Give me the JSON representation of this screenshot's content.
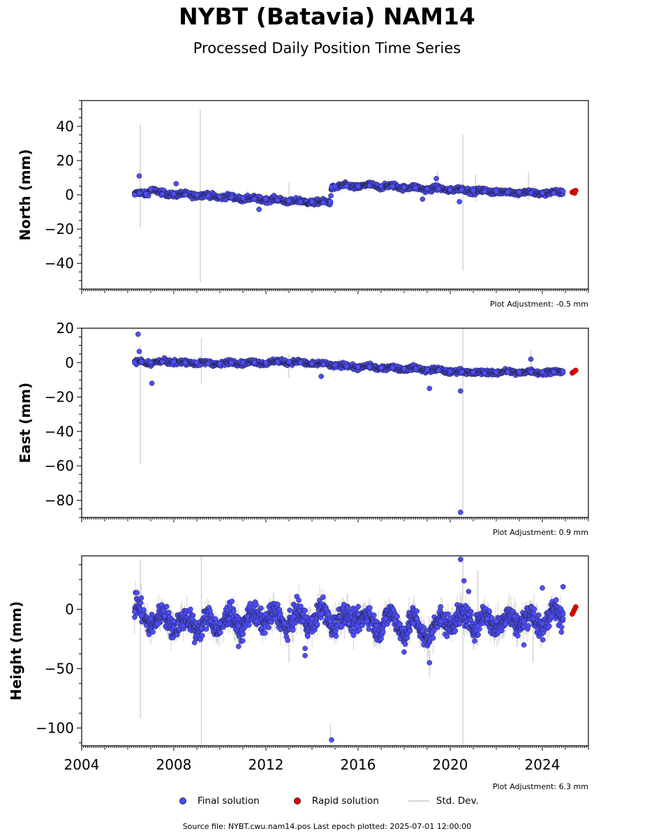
{
  "header": {
    "title": "NYBT (Batavia) NAM14",
    "subtitle": "Processed Daily Position Time Series"
  },
  "legend": {
    "final_label": "Final solution",
    "rapid_label": "Rapid solution",
    "std_label": "Std. Dev."
  },
  "footer": {
    "source": "Source file: NYBT.cwu.nam14.pos  Last epoch plotted: 2025-07-01 12:00:00"
  },
  "colors": {
    "final": "#4d4dff",
    "rapid": "#ee0000",
    "std": "#c8c8c8",
    "marker_edge": "#1a1a1a"
  },
  "chart_data": [
    {
      "type": "scatter",
      "component": "north",
      "ylabel": "North (mm)",
      "adjustment": "Plot Adjustment: -0.5 mm",
      "xlim": [
        2004.0,
        2026.0
      ],
      "ylim": [
        -55,
        55
      ],
      "yticks": [
        40,
        20,
        0,
        -20,
        -40
      ],
      "yticklabels": [
        "40",
        "20",
        "0",
        "−20",
        "−40"
      ],
      "series": [
        {
          "name": "Final solution",
          "x": [
            2006.3,
            2006.5,
            2006.8,
            2007.0,
            2007.5,
            2008.0,
            2008.5,
            2009.0,
            2009.5,
            2010.0,
            2010.5,
            2011.0,
            2011.5,
            2012.0,
            2012.5,
            2013.0,
            2013.5,
            2014.0,
            2014.5,
            2014.8,
            2014.85,
            2015.0,
            2015.5,
            2016.0,
            2016.5,
            2017.0,
            2017.5,
            2018.0,
            2018.5,
            2019.0,
            2019.5,
            2020.0,
            2020.5,
            2021.0,
            2021.5,
            2022.0,
            2022.5,
            2023.0,
            2023.5,
            2024.0,
            2024.5,
            2024.9
          ],
          "y": [
            0.0,
            1.0,
            0.5,
            3.5,
            0.5,
            0.5,
            0.0,
            0.0,
            -0.5,
            -1.0,
            -1.5,
            -2.0,
            -2.5,
            -2.5,
            -3.0,
            -3.5,
            -4.0,
            -4.0,
            -4.5,
            -4.0,
            4.5,
            5.0,
            5.0,
            5.0,
            5.5,
            5.0,
            5.0,
            4.5,
            4.0,
            3.5,
            3.5,
            3.0,
            3.0,
            2.5,
            2.0,
            2.0,
            1.5,
            1.5,
            1.0,
            1.0,
            1.0,
            2.0
          ]
        },
        {
          "name": "Rapid solution",
          "x": [
            2025.3,
            2025.35,
            2025.4,
            2025.45
          ],
          "y": [
            1.5,
            2.0,
            1.0,
            2.5
          ]
        }
      ],
      "outliers": [
        {
          "x": 2006.5,
          "y": 11.0
        },
        {
          "x": 2008.1,
          "y": 6.5
        },
        {
          "x": 2011.7,
          "y": -8.5
        },
        {
          "x": 2019.4,
          "y": 9.5
        },
        {
          "x": 2020.4,
          "y": -4.0
        },
        {
          "x": 2018.8,
          "y": -2.5
        }
      ],
      "errorbars": [
        {
          "x": 2006.55,
          "y1": -19,
          "y2": 41
        },
        {
          "x": 2009.15,
          "y1": -51,
          "y2": 50
        },
        {
          "x": 2020.55,
          "y1": -44,
          "y2": 35
        },
        {
          "x": 2013.0,
          "y1": -6,
          "y2": 7
        },
        {
          "x": 2019.45,
          "y1": 0,
          "y2": 14
        },
        {
          "x": 2021.1,
          "y1": -4,
          "y2": 12
        },
        {
          "x": 2023.4,
          "y1": -3,
          "y2": 13
        }
      ]
    },
    {
      "type": "scatter",
      "component": "east",
      "ylabel": "East (mm)",
      "adjustment": "Plot Adjustment: 0.9 mm",
      "xlim": [
        2004.0,
        2026.0
      ],
      "ylim": [
        -90,
        20
      ],
      "yticks": [
        20,
        0,
        -20,
        -40,
        -60,
        -80
      ],
      "yticklabels": [
        "20",
        "0",
        "−20",
        "−40",
        "−60",
        "−80"
      ],
      "series": [
        {
          "name": "Final solution",
          "x": [
            2006.3,
            2006.6,
            2007.0,
            2007.5,
            2008.0,
            2008.5,
            2009.0,
            2009.5,
            2010.0,
            2010.5,
            2011.0,
            2011.5,
            2012.0,
            2012.5,
            2013.0,
            2013.5,
            2014.0,
            2014.5,
            2015.0,
            2015.5,
            2016.0,
            2016.5,
            2017.0,
            2017.5,
            2018.0,
            2018.5,
            2019.0,
            2019.5,
            2020.0,
            2020.5,
            2021.0,
            2021.5,
            2022.0,
            2022.5,
            2023.0,
            2023.5,
            2024.0,
            2024.5,
            2024.9
          ],
          "y": [
            0.0,
            0.5,
            0.0,
            0.5,
            0.5,
            0.0,
            0.0,
            -0.5,
            -0.5,
            0.0,
            0.0,
            0.0,
            0.0,
            0.5,
            0.5,
            0.0,
            -0.5,
            -1.0,
            -1.5,
            -2.0,
            -2.5,
            -2.5,
            -3.0,
            -3.0,
            -3.5,
            -3.5,
            -4.0,
            -4.5,
            -5.0,
            -5.5,
            -5.5,
            -6.0,
            -5.5,
            -5.5,
            -5.5,
            -5.5,
            -5.5,
            -5.5,
            -5.0
          ]
        },
        {
          "name": "Rapid solution",
          "x": [
            2025.3,
            2025.35,
            2025.4,
            2025.45
          ],
          "y": [
            -6.0,
            -5.5,
            -5.0,
            -4.5
          ]
        }
      ],
      "outliers": [
        {
          "x": 2006.45,
          "y": 16.5
        },
        {
          "x": 2006.5,
          "y": 6.5
        },
        {
          "x": 2007.05,
          "y": -12.0
        },
        {
          "x": 2019.1,
          "y": -15.0
        },
        {
          "x": 2020.45,
          "y": -16.5
        },
        {
          "x": 2020.45,
          "y": -87.0
        },
        {
          "x": 2023.5,
          "y": 2.0
        },
        {
          "x": 2014.4,
          "y": -8.0
        }
      ],
      "errorbars": [
        {
          "x": 2006.55,
          "y1": -59,
          "y2": 10
        },
        {
          "x": 2009.2,
          "y1": -12,
          "y2": 14
        },
        {
          "x": 2020.55,
          "y1": -86,
          "y2": 20
        },
        {
          "x": 2013.0,
          "y1": -9,
          "y2": 5
        },
        {
          "x": 2023.5,
          "y1": -3,
          "y2": 7
        }
      ]
    },
    {
      "type": "scatter",
      "component": "height",
      "ylabel": "Height (mm)",
      "adjustment": "Plot Adjustment: 6.3 mm",
      "xlim": [
        2004.0,
        2026.0
      ],
      "ylim": [
        -115,
        45
      ],
      "yticks": [
        0,
        -50,
        -100
      ],
      "yticklabels": [
        "0",
        "−50",
        "−100"
      ],
      "xticks": [
        2004,
        2008,
        2012,
        2016,
        2020,
        2024
      ],
      "xticklabels": [
        "2004",
        "2008",
        "2012",
        "2016",
        "2020",
        "2024"
      ],
      "series": [
        {
          "name": "Final solution",
          "x": [
            2006.3,
            2006.6,
            2007.0,
            2007.3,
            2007.6,
            2008.0,
            2008.4,
            2008.8,
            2009.2,
            2009.6,
            2010.0,
            2010.4,
            2010.8,
            2011.2,
            2011.6,
            2012.0,
            2012.4,
            2012.8,
            2013.2,
            2013.6,
            2014.0,
            2014.4,
            2014.8,
            2015.2,
            2015.6,
            2016.0,
            2016.4,
            2016.8,
            2017.2,
            2017.6,
            2018.0,
            2018.4,
            2018.8,
            2019.2,
            2019.6,
            2020.0,
            2020.4,
            2020.8,
            2021.2,
            2021.6,
            2022.0,
            2022.4,
            2022.8,
            2023.2,
            2023.6,
            2024.0,
            2024.4,
            2024.9
          ],
          "y": [
            -2,
            -5,
            -8,
            -12,
            -6,
            -10,
            -14,
            -8,
            -16,
            -10,
            -12,
            -8,
            -14,
            -6,
            -10,
            -4,
            -8,
            -12,
            -6,
            -10,
            -8,
            -4,
            -10,
            -6,
            -12,
            -4,
            -10,
            -14,
            -8,
            -10,
            -16,
            -12,
            -18,
            -20,
            -10,
            -8,
            -12,
            -4,
            -14,
            -8,
            -10,
            -12,
            -6,
            -10,
            -8,
            -12,
            -6,
            -4
          ]
        },
        {
          "name": "Rapid solution",
          "x": [
            2025.3,
            2025.35,
            2025.4,
            2025.45
          ],
          "y": [
            -4,
            -2,
            0,
            2
          ]
        }
      ],
      "outliers": [
        {
          "x": 2006.4,
          "y": 14
        },
        {
          "x": 2008.9,
          "y": -28
        },
        {
          "x": 2013.7,
          "y": -33
        },
        {
          "x": 2013.7,
          "y": -39
        },
        {
          "x": 2014.85,
          "y": -110
        },
        {
          "x": 2018.0,
          "y": -36
        },
        {
          "x": 2019.1,
          "y": -45
        },
        {
          "x": 2020.45,
          "y": 42
        },
        {
          "x": 2020.6,
          "y": 24
        },
        {
          "x": 2020.8,
          "y": 15
        },
        {
          "x": 2024.0,
          "y": 18
        },
        {
          "x": 2024.9,
          "y": 19
        },
        {
          "x": 2023.2,
          "y": -30
        }
      ],
      "errorbars": [
        {
          "x": 2006.55,
          "y1": -92,
          "y2": 42
        },
        {
          "x": 2009.2,
          "y1": -115,
          "y2": 45
        },
        {
          "x": 2020.55,
          "y1": -115,
          "y2": 45
        },
        {
          "x": 2014.8,
          "y1": -113,
          "y2": -97
        },
        {
          "x": 2013.0,
          "y1": -45,
          "y2": -20
        },
        {
          "x": 2019.1,
          "y1": -57,
          "y2": -35
        },
        {
          "x": 2023.6,
          "y1": -45,
          "y2": 0
        },
        {
          "x": 2021.2,
          "y1": -30,
          "y2": 33
        }
      ]
    }
  ]
}
